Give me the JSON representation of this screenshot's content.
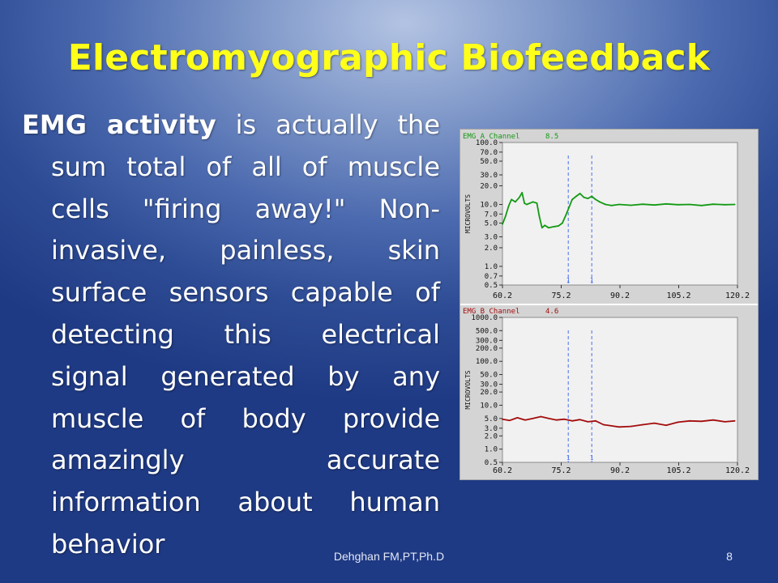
{
  "slide": {
    "title": "Electromyographic Biofeedback",
    "body_bold": "EMG activity",
    "body_rest": " is actually the sum total of all of muscle cells \"firing away!\" Non-invasive, painless, skin surface sensors capable of detecting this electrical signal generated by any muscle of body provide amazingly accurate information about human behavior",
    "footer": "Dehghan FM,PT,Ph.D",
    "page_number": "8"
  },
  "chart_data": [
    {
      "type": "line",
      "title": "EMG A Channel",
      "readout": "8.5",
      "ylabel": "MICROVOLTS",
      "y_scale": "log",
      "ylim": [
        0.5,
        100
      ],
      "yticks": [
        "0.5",
        "0.7",
        "1.0",
        "2.0",
        "3.0",
        "5.0",
        "7.0",
        "10.0",
        "20.0",
        "30.0",
        "50.0",
        "70.0",
        "100.0"
      ],
      "xlim": [
        60.2,
        120.2
      ],
      "xticks": [
        "60.2",
        "75.2",
        "90.2",
        "105.2",
        "120.2"
      ],
      "markers": [
        {
          "x": 77.0,
          "label": "1"
        },
        {
          "x": 83.0,
          "label": "1"
        }
      ],
      "color": "#139a13",
      "series": [
        {
          "x": [
            60.2,
            61.0,
            61.8,
            62.5,
            63.5,
            64.5,
            65.2,
            65.8,
            66.4,
            67.2,
            68.0,
            69.0,
            69.6,
            70.3,
            71.0,
            72.0,
            73.5,
            74.5,
            75.5,
            76.3,
            77.2,
            78.0,
            79.0,
            80.0,
            81.0,
            82.0,
            83.0,
            84.0,
            85.0,
            86.5,
            88.0,
            90.0,
            93.0,
            96.0,
            99.0,
            102.0,
            105.0,
            108.0,
            111.0,
            114.0,
            117.0,
            119.5
          ],
          "values": [
            4.8,
            6.5,
            9.5,
            12.0,
            11.0,
            13.0,
            15.5,
            10.5,
            10.0,
            10.5,
            11.0,
            10.5,
            6.5,
            4.2,
            4.6,
            4.2,
            4.4,
            4.5,
            5.0,
            6.5,
            9.0,
            12.0,
            13.5,
            15.0,
            13.0,
            12.5,
            13.5,
            12.0,
            11.0,
            10.0,
            9.6,
            10.0,
            9.7,
            10.1,
            9.8,
            10.2,
            9.9,
            10.0,
            9.6,
            10.1,
            9.9,
            10.0
          ]
        }
      ]
    },
    {
      "type": "line",
      "title": "EMG B Channel",
      "readout": "4.6",
      "ylabel": "MICROVOLTS",
      "y_scale": "log",
      "ylim": [
        0.5,
        1000
      ],
      "yticks": [
        "0.5",
        "1.0",
        "2.0",
        "3.0",
        "5.0",
        "10.0",
        "20.0",
        "30.0",
        "50.0",
        "100.0",
        "200.0",
        "300.0",
        "500.0",
        "1000.0"
      ],
      "xlim": [
        60.2,
        120.2
      ],
      "xticks": [
        "60.2",
        "75.2",
        "90.2",
        "105.2",
        "120.2"
      ],
      "markers": [
        {
          "x": 77.0,
          "label": "1"
        },
        {
          "x": 83.0,
          "label": "1"
        }
      ],
      "color": "#a30d0d",
      "series": [
        {
          "x": [
            60.2,
            62.0,
            64.0,
            66.0,
            68.0,
            70.0,
            72.0,
            74.0,
            76.0,
            78.0,
            80.0,
            82.0,
            84.0,
            86.0,
            88.0,
            90.0,
            93.0,
            96.0,
            99.0,
            102.0,
            105.0,
            108.0,
            111.0,
            114.0,
            117.0,
            119.5
          ],
          "values": [
            4.8,
            4.5,
            5.2,
            4.6,
            5.0,
            5.5,
            5.0,
            4.6,
            4.8,
            4.4,
            4.7,
            4.2,
            4.4,
            3.6,
            3.4,
            3.2,
            3.3,
            3.6,
            3.9,
            3.5,
            4.1,
            4.4,
            4.3,
            4.6,
            4.2,
            4.4
          ]
        }
      ]
    }
  ]
}
